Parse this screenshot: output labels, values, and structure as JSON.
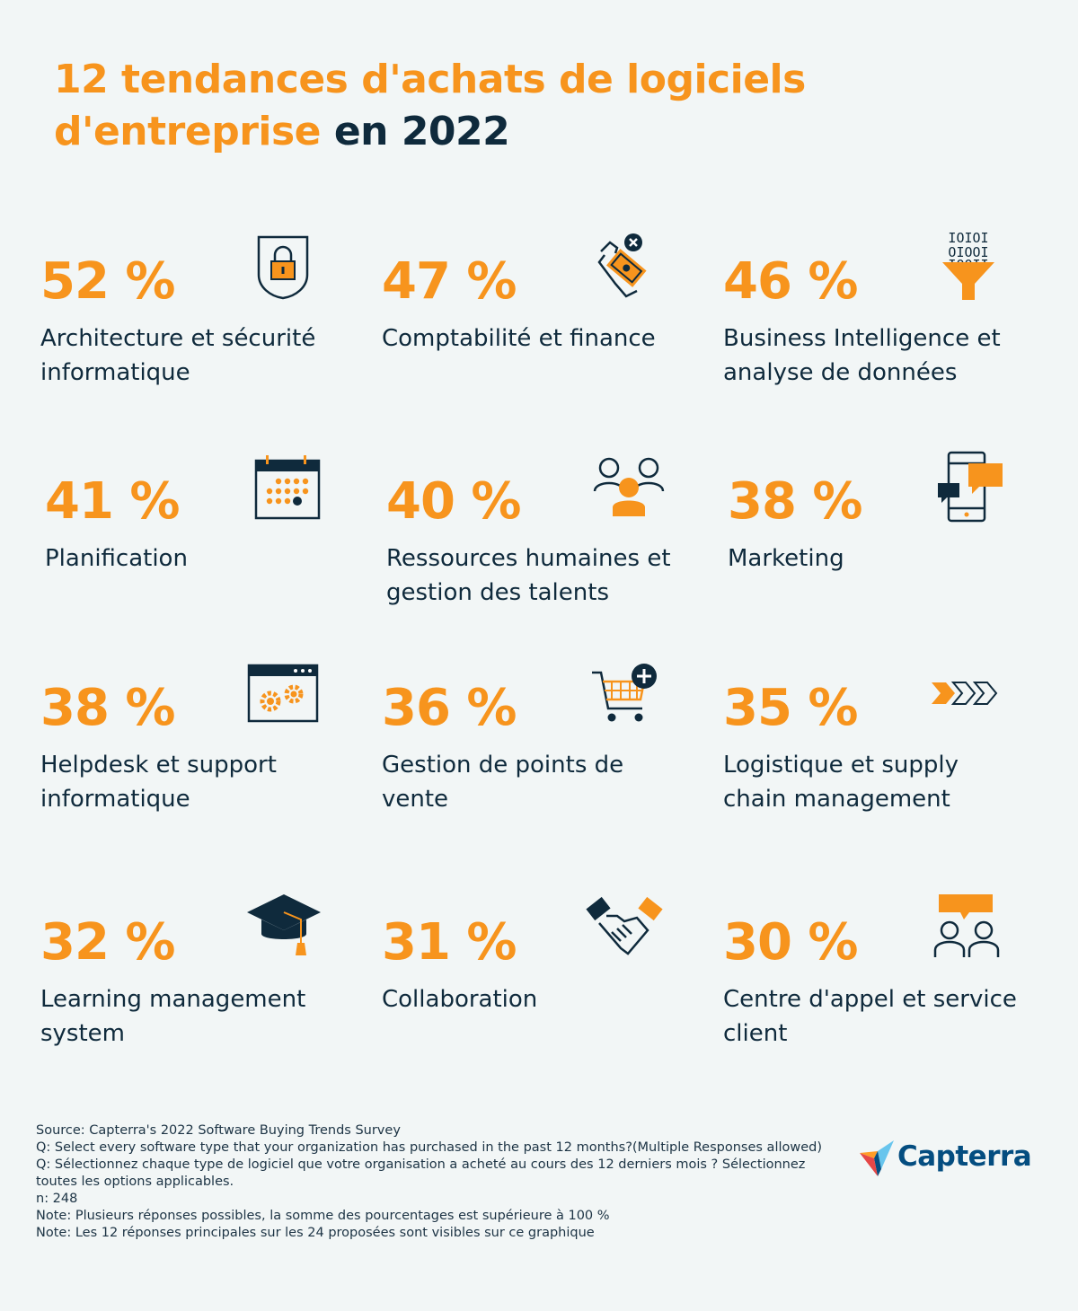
{
  "title": {
    "line1": "12 tendances d'achats de logiciels",
    "line2_highlight": "d'entreprise",
    "line2_rest": " en 2022"
  },
  "chart_data": {
    "type": "table",
    "unit": "%",
    "items": [
      {
        "value": 52,
        "display": "52 %",
        "label": "Architecture et sécurité informatique",
        "icon": "shield-lock-icon"
      },
      {
        "value": 47,
        "display": "47 %",
        "label": "Comptabilité et finance",
        "icon": "hand-money-icon"
      },
      {
        "value": 46,
        "display": "46 %",
        "label": "Business Intelligence et analyse de données",
        "icon": "data-funnel-icon"
      },
      {
        "value": 41,
        "display": "41 %",
        "label": "Planification",
        "icon": "calendar-icon"
      },
      {
        "value": 40,
        "display": "40 %",
        "label": "Ressources humaines et gestion des talents",
        "icon": "people-icon"
      },
      {
        "value": 38,
        "display": "38 %",
        "label": "Marketing",
        "icon": "phone-chat-icon"
      },
      {
        "value": 38,
        "display": "38 %",
        "label": "Helpdesk et support informatique",
        "icon": "browser-gears-icon"
      },
      {
        "value": 36,
        "display": "36 %",
        "label": "Gestion de points de vente",
        "icon": "cart-add-icon"
      },
      {
        "value": 35,
        "display": "35 %",
        "label": "Logistique et supply chain management",
        "icon": "chevrons-icon"
      },
      {
        "value": 32,
        "display": "32 %",
        "label": "Learning management system",
        "icon": "graduation-cap-icon"
      },
      {
        "value": 31,
        "display": "31 %",
        "label": "Collaboration",
        "icon": "handshake-icon"
      },
      {
        "value": 30,
        "display": "30 %",
        "label": "Centre d'appel et service client",
        "icon": "support-people-icon"
      }
    ]
  },
  "footer": {
    "source": "Source: Capterra's 2022 Software Buying Trends Survey",
    "q_en": "Q: Select every software type that your organization has purchased in the past 12 months?(Multiple Responses allowed)",
    "q_fr": "Q: Sélectionnez chaque type de logiciel que votre organisation a acheté au cours des 12 derniers mois ? Sélectionnez toutes les options applicables.",
    "n": "n: 248",
    "note1": "Note: Plusieurs réponses possibles, la somme des pourcentages est supérieure à 100 %",
    "note2": "Note: Les 12 réponses principales sur les 24 proposées sont visibles sur ce graphique"
  },
  "brand": {
    "name": "Capterra"
  },
  "colors": {
    "accent": "#f7941d",
    "dark": "#0f2a3c",
    "background": "#f2f6f6",
    "brand": "#044d80"
  }
}
